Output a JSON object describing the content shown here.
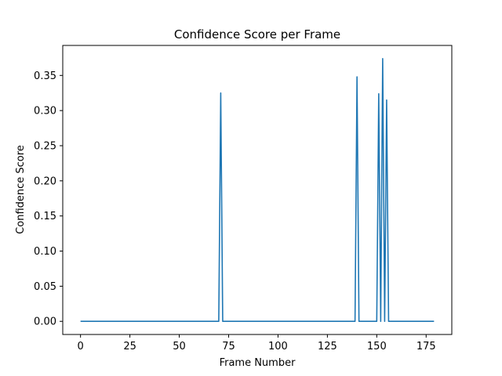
{
  "chart_data": {
    "type": "line",
    "title": "Confidence Score per Frame",
    "xlabel": "Frame Number",
    "ylabel": "Confidence Score",
    "xlim": [
      -9,
      188
    ],
    "ylim": [
      -0.0187,
      0.3927
    ],
    "xticks": [
      0,
      25,
      50,
      75,
      100,
      125,
      150,
      175
    ],
    "yticks": [
      0.0,
      0.05,
      0.1,
      0.15,
      0.2,
      0.25,
      0.3,
      0.35
    ],
    "ytick_labels": [
      "0.00",
      "0.05",
      "0.10",
      "0.15",
      "0.20",
      "0.25",
      "0.30",
      "0.35"
    ],
    "grid": false,
    "series": [
      {
        "color": "#1f77b4",
        "x": [
          0,
          70,
          71,
          72,
          139,
          140,
          141,
          150,
          151,
          152,
          153,
          154,
          155,
          156,
          179
        ],
        "y": [
          0,
          0,
          0.325,
          0,
          0,
          0.348,
          0,
          0,
          0.324,
          0,
          0.374,
          0,
          0.315,
          0,
          0
        ]
      }
    ]
  }
}
